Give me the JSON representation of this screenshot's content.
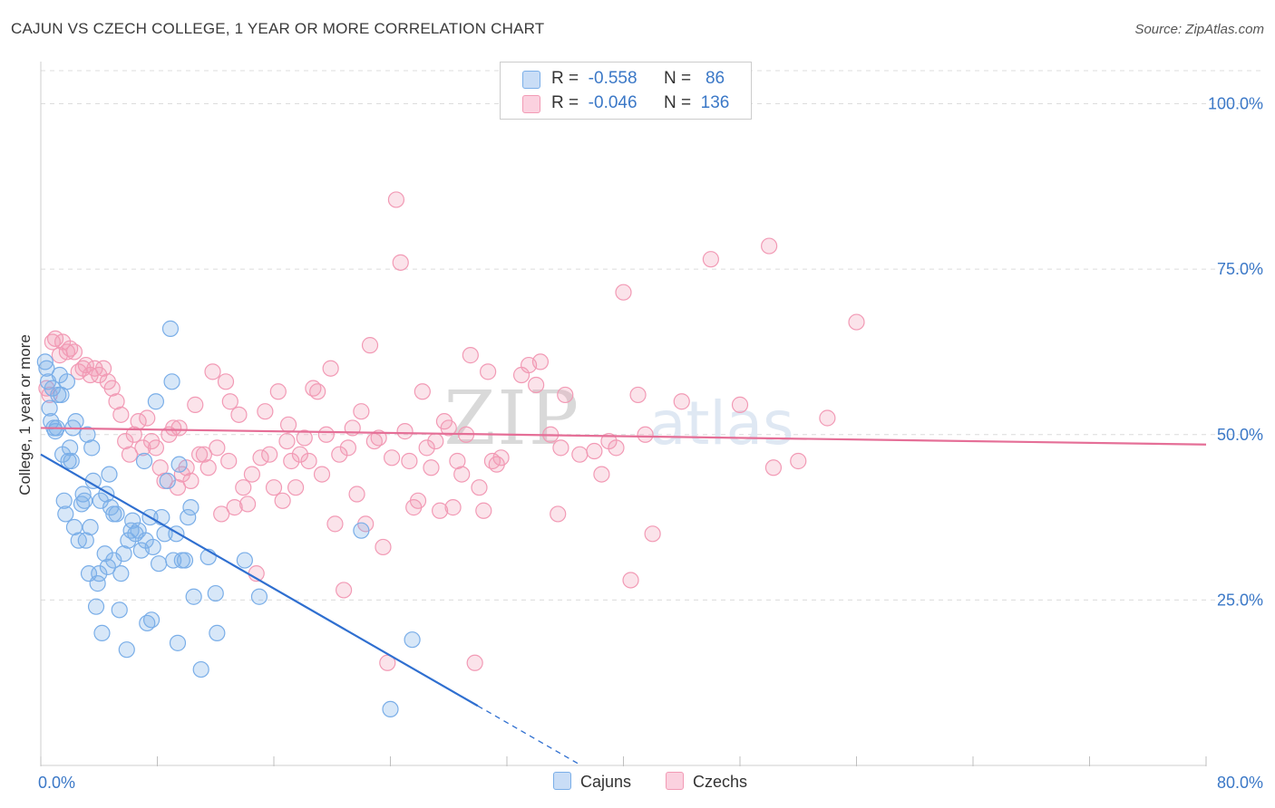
{
  "title": "CAJUN VS CZECH COLLEGE, 1 YEAR OR MORE CORRELATION CHART",
  "source": "Source: ZipAtlas.com",
  "legend": {
    "rows": [
      {
        "r_label": "R =",
        "r_value": "-0.558",
        "n_label": "N =",
        "n_value": "86",
        "color": "#7aaee8"
      },
      {
        "r_label": "R =",
        "r_value": "-0.046",
        "n_label": "N =",
        "n_value": "136",
        "color": "#f29ab5"
      }
    ]
  },
  "bottom_legend": [
    {
      "label": "Cajuns",
      "color": "#7aaee8"
    },
    {
      "label": "Czechs",
      "color": "#f29ab5"
    }
  ],
  "chart_data": {
    "type": "scatter",
    "xlabel": "",
    "ylabel": "College, 1 year or more",
    "xlim": [
      0,
      80
    ],
    "ylim": [
      0,
      105
    ],
    "x_ticks": [
      "0.0%",
      "80.0%"
    ],
    "y_ticks": [
      "25.0%",
      "50.0%",
      "75.0%",
      "100.0%"
    ],
    "y_tick_values": [
      25,
      50,
      75,
      100
    ],
    "grid": true,
    "watermark": "ZIPatlas",
    "series": [
      {
        "name": "Cajuns",
        "color": "#7aaee8",
        "line_color": "#2f6fd0",
        "trend": {
          "x0": 0.0,
          "y0": 47.0,
          "x1": 30.0,
          "y1": 9.0,
          "dash_to_x": 37.0
        },
        "points": [
          [
            0.3,
            61
          ],
          [
            0.4,
            60
          ],
          [
            0.5,
            58
          ],
          [
            0.6,
            54
          ],
          [
            0.7,
            52
          ],
          [
            0.8,
            57
          ],
          [
            0.9,
            51
          ],
          [
            1.0,
            50.5
          ],
          [
            1.1,
            51
          ],
          [
            1.3,
            59
          ],
          [
            1.4,
            56
          ],
          [
            1.5,
            47
          ],
          [
            1.6,
            40
          ],
          [
            1.7,
            38
          ],
          [
            1.8,
            58
          ],
          [
            1.9,
            46
          ],
          [
            2.0,
            48
          ],
          [
            2.1,
            46
          ],
          [
            2.2,
            51
          ],
          [
            2.3,
            36
          ],
          [
            2.4,
            52
          ],
          [
            2.6,
            34
          ],
          [
            2.8,
            39.5
          ],
          [
            2.9,
            41
          ],
          [
            3.0,
            40
          ],
          [
            3.1,
            34
          ],
          [
            3.2,
            50
          ],
          [
            3.3,
            29
          ],
          [
            3.4,
            36
          ],
          [
            3.5,
            48
          ],
          [
            3.6,
            43
          ],
          [
            3.8,
            24
          ],
          [
            3.9,
            27.5
          ],
          [
            4.0,
            29
          ],
          [
            4.1,
            40
          ],
          [
            4.2,
            20
          ],
          [
            4.4,
            32
          ],
          [
            4.5,
            41
          ],
          [
            4.6,
            30
          ],
          [
            4.7,
            44
          ],
          [
            4.8,
            39
          ],
          [
            5.0,
            31
          ],
          [
            5.2,
            38
          ],
          [
            5.4,
            23.5
          ],
          [
            5.5,
            29
          ],
          [
            5.7,
            32
          ],
          [
            5.9,
            17.5
          ],
          [
            6.0,
            34
          ],
          [
            6.2,
            35.5
          ],
          [
            6.3,
            37
          ],
          [
            6.5,
            35
          ],
          [
            6.7,
            35.5
          ],
          [
            6.9,
            32.5
          ],
          [
            7.1,
            46
          ],
          [
            7.2,
            34
          ],
          [
            7.3,
            21.5
          ],
          [
            7.5,
            37.5
          ],
          [
            7.6,
            22
          ],
          [
            7.7,
            33
          ],
          [
            7.9,
            55
          ],
          [
            8.1,
            30.5
          ],
          [
            8.3,
            37.5
          ],
          [
            8.5,
            35
          ],
          [
            8.7,
            43
          ],
          [
            9.0,
            58
          ],
          [
            9.1,
            31
          ],
          [
            9.3,
            35
          ],
          [
            9.4,
            18.5
          ],
          [
            9.5,
            45.5
          ],
          [
            9.7,
            31
          ],
          [
            9.9,
            31
          ],
          [
            10.1,
            37.5
          ],
          [
            10.3,
            39
          ],
          [
            10.5,
            25.5
          ],
          [
            11.0,
            14.5
          ],
          [
            11.5,
            31.5
          ],
          [
            12.0,
            26
          ],
          [
            12.1,
            20
          ],
          [
            14.0,
            31
          ],
          [
            15.0,
            25.5
          ],
          [
            8.9,
            66
          ],
          [
            22.0,
            35.5
          ],
          [
            25.5,
            19
          ],
          [
            24.0,
            8.5
          ],
          [
            1.2,
            56
          ],
          [
            5.0,
            38
          ]
        ]
      },
      {
        "name": "Czechs",
        "color": "#f29ab5",
        "line_color": "#e56f97",
        "trend": {
          "x0": 0.0,
          "y0": 51.0,
          "x1": 80.0,
          "y1": 48.5
        },
        "points": [
          [
            0.4,
            57
          ],
          [
            0.6,
            56
          ],
          [
            0.8,
            64
          ],
          [
            1.0,
            64.5
          ],
          [
            1.3,
            62
          ],
          [
            1.5,
            64
          ],
          [
            1.8,
            62.5
          ],
          [
            2.0,
            63
          ],
          [
            2.3,
            62.5
          ],
          [
            2.6,
            59.5
          ],
          [
            2.9,
            60
          ],
          [
            3.1,
            60.5
          ],
          [
            3.4,
            59
          ],
          [
            3.7,
            60
          ],
          [
            4.0,
            59
          ],
          [
            4.3,
            60
          ],
          [
            4.6,
            58
          ],
          [
            4.9,
            57
          ],
          [
            5.2,
            55
          ],
          [
            5.5,
            53
          ],
          [
            5.8,
            49
          ],
          [
            6.1,
            47
          ],
          [
            6.4,
            50
          ],
          [
            6.7,
            52
          ],
          [
            7.0,
            48
          ],
          [
            7.3,
            52.5
          ],
          [
            7.6,
            49
          ],
          [
            7.9,
            48
          ],
          [
            8.2,
            45
          ],
          [
            8.5,
            43
          ],
          [
            8.8,
            50
          ],
          [
            9.1,
            51
          ],
          [
            9.4,
            42
          ],
          [
            9.7,
            44
          ],
          [
            10.0,
            45
          ],
          [
            10.3,
            43
          ],
          [
            10.6,
            54.5
          ],
          [
            10.9,
            47
          ],
          [
            11.2,
            47
          ],
          [
            11.5,
            45
          ],
          [
            11.8,
            59.5
          ],
          [
            12.1,
            48
          ],
          [
            12.4,
            38
          ],
          [
            12.7,
            58
          ],
          [
            13.0,
            55
          ],
          [
            13.3,
            39
          ],
          [
            13.6,
            53
          ],
          [
            13.9,
            42
          ],
          [
            14.2,
            39.5
          ],
          [
            14.5,
            44
          ],
          [
            14.8,
            29
          ],
          [
            15.1,
            46.5
          ],
          [
            15.4,
            53.5
          ],
          [
            15.7,
            47
          ],
          [
            16.0,
            42
          ],
          [
            16.3,
            56.5
          ],
          [
            16.6,
            40
          ],
          [
            16.9,
            49
          ],
          [
            17.2,
            46
          ],
          [
            17.5,
            42
          ],
          [
            17.8,
            47
          ],
          [
            18.1,
            49.5
          ],
          [
            18.4,
            46
          ],
          [
            18.7,
            57
          ],
          [
            19.0,
            56.5
          ],
          [
            19.3,
            44
          ],
          [
            19.6,
            50
          ],
          [
            19.9,
            60
          ],
          [
            20.2,
            36.5
          ],
          [
            20.5,
            47
          ],
          [
            20.8,
            26.5
          ],
          [
            21.1,
            48
          ],
          [
            21.4,
            51
          ],
          [
            21.7,
            41
          ],
          [
            22.0,
            53.5
          ],
          [
            22.3,
            36.5
          ],
          [
            22.6,
            63.5
          ],
          [
            22.9,
            49
          ],
          [
            23.2,
            49.5
          ],
          [
            23.5,
            33
          ],
          [
            23.8,
            15.5
          ],
          [
            24.1,
            46.5
          ],
          [
            24.4,
            85.5
          ],
          [
            24.7,
            76
          ],
          [
            25.0,
            50.5
          ],
          [
            25.3,
            46
          ],
          [
            25.6,
            39
          ],
          [
            25.9,
            40
          ],
          [
            26.2,
            56.5
          ],
          [
            26.5,
            48
          ],
          [
            26.8,
            45
          ],
          [
            27.1,
            49
          ],
          [
            27.4,
            38.5
          ],
          [
            27.7,
            52
          ],
          [
            28.0,
            51
          ],
          [
            28.3,
            39
          ],
          [
            28.6,
            46
          ],
          [
            28.9,
            44
          ],
          [
            29.2,
            50
          ],
          [
            29.5,
            62
          ],
          [
            29.8,
            15.5
          ],
          [
            30.1,
            42
          ],
          [
            30.4,
            38.5
          ],
          [
            30.7,
            59.5
          ],
          [
            31.0,
            46
          ],
          [
            31.3,
            45.5
          ],
          [
            31.6,
            46.5
          ],
          [
            33.0,
            59
          ],
          [
            33.5,
            60.5
          ],
          [
            34.0,
            57.5
          ],
          [
            34.3,
            61
          ],
          [
            35.0,
            50
          ],
          [
            35.5,
            38
          ],
          [
            36.0,
            56
          ],
          [
            37.0,
            47
          ],
          [
            38.0,
            47.5
          ],
          [
            38.5,
            44
          ],
          [
            39.0,
            49
          ],
          [
            39.5,
            48
          ],
          [
            40.0,
            71.5
          ],
          [
            40.5,
            28
          ],
          [
            41.0,
            56
          ],
          [
            41.5,
            50
          ],
          [
            42.0,
            35
          ],
          [
            44.0,
            55
          ],
          [
            46.0,
            76.5
          ],
          [
            48.0,
            54.5
          ],
          [
            50.0,
            78.5
          ],
          [
            52.0,
            46
          ],
          [
            54.0,
            52.5
          ],
          [
            56.0,
            67
          ],
          [
            9.5,
            51
          ],
          [
            12.9,
            46
          ],
          [
            17.0,
            51.5
          ],
          [
            35.7,
            48
          ],
          [
            50.3,
            45
          ]
        ]
      }
    ]
  }
}
